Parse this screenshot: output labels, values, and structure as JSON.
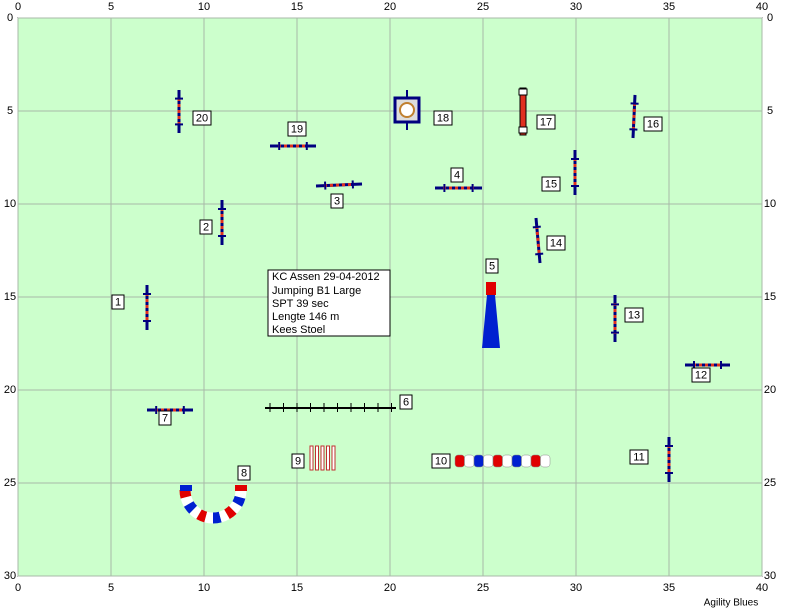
{
  "axes": {
    "x_ticks": [
      0,
      5,
      10,
      15,
      20,
      25,
      30,
      35,
      40
    ],
    "y_ticks": [
      0,
      5,
      10,
      15,
      20,
      25,
      30
    ]
  },
  "obstacles": [
    {
      "label": "1"
    },
    {
      "label": "2"
    },
    {
      "label": "3"
    },
    {
      "label": "4"
    },
    {
      "label": "5"
    },
    {
      "label": "6"
    },
    {
      "label": "7"
    },
    {
      "label": "8"
    },
    {
      "label": "9"
    },
    {
      "label": "10"
    },
    {
      "label": "11"
    },
    {
      "label": "12"
    },
    {
      "label": "13"
    },
    {
      "label": "14"
    },
    {
      "label": "15"
    },
    {
      "label": "16"
    },
    {
      "label": "17"
    },
    {
      "label": "18"
    },
    {
      "label": "19"
    },
    {
      "label": "20"
    }
  ],
  "info": [
    "KC Assen 29-04-2012",
    "Jumping B1 Large",
    "SPT 39 sec",
    "Lengte 146 m",
    "Kees Stoel"
  ],
  "footer": "Agility Blues"
}
